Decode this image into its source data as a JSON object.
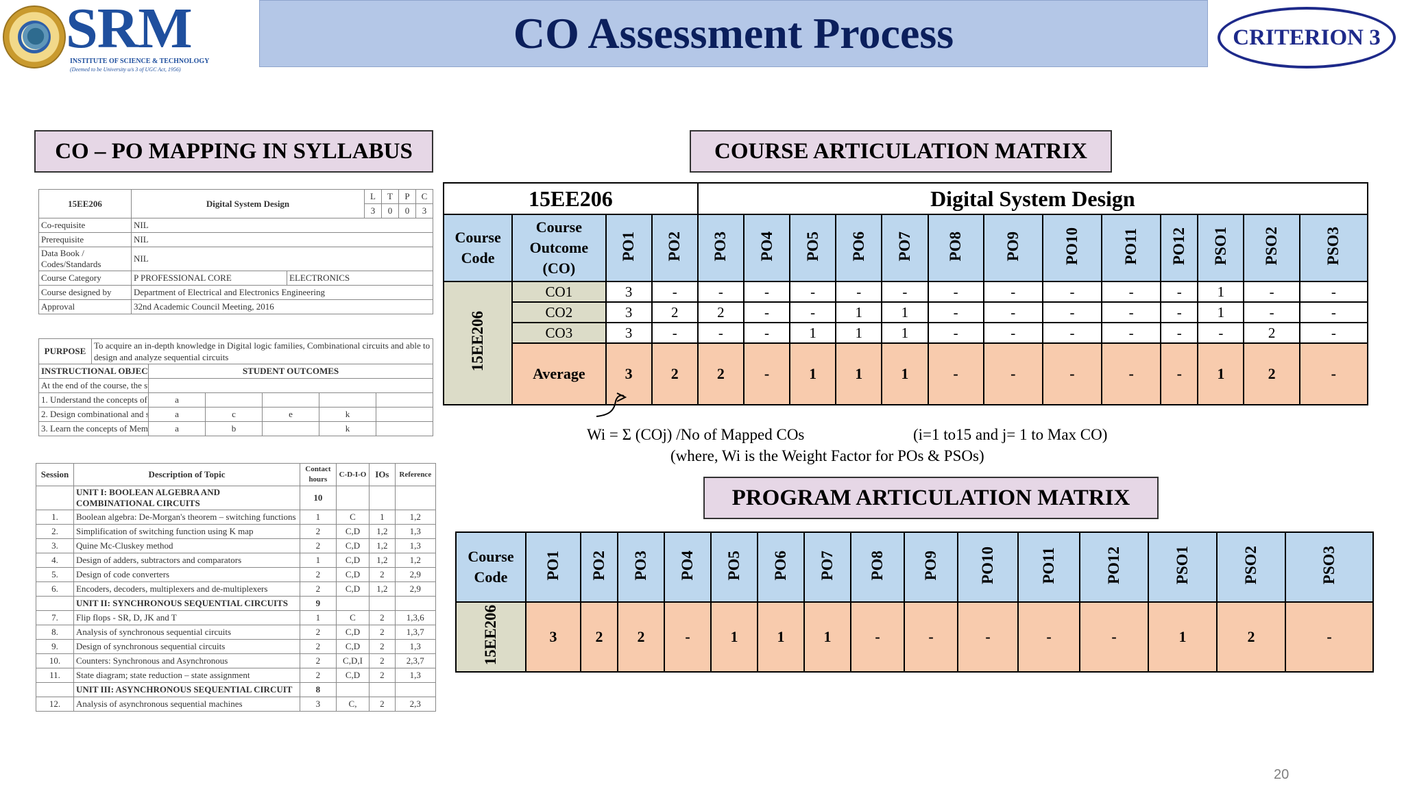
{
  "header": {
    "logo_text": "SRM",
    "logo_subtitle": "INSTITUTE OF SCIENCE & TECHNOLOGY",
    "logo_subtitle2": "(Deemed to be University u/s 3 of UGC Act, 1956)",
    "title": "CO Assessment Process",
    "criterion": "CRITERION 3"
  },
  "sections": {
    "syllabus": "CO – PO MAPPING IN SYLLABUS",
    "course_matrix": "COURSE ARTICULATION MATRIX",
    "program_matrix": "PROGRAM ARTICULATION MATRIX"
  },
  "syllabus": {
    "course_code": "15EE206",
    "course_name": "Digital System Design",
    "ltpc_labels": [
      "L",
      "T",
      "P",
      "C"
    ],
    "ltpc_values": [
      "3",
      "0",
      "0",
      "3"
    ],
    "info_rows": [
      {
        "label": "Co-requisite",
        "value": "NIL"
      },
      {
        "label": "Prerequisite",
        "value": "NIL"
      },
      {
        "label": "Data Book / Codes/Standards",
        "value": "NIL"
      },
      {
        "label": "Course Category",
        "value": "P    PROFESSIONAL CORE",
        "extra": "ELECTRONICS"
      },
      {
        "label": "Course designed by",
        "value": "Department of Electrical and Electronics Engineering"
      },
      {
        "label": "Approval",
        "value": "32nd Academic Council Meeting, 2016"
      }
    ],
    "purpose_label": "PURPOSE",
    "purpose_text": "To acquire an in-depth knowledge in Digital logic families, Combinational circuits and able to design and analyze sequential circuits",
    "objectives_header": "INSTRUCTIONAL OBJECTIVES",
    "outcomes_header": "STUDENT OUTCOMES",
    "objectives_intro": "At the end of the course, the student will be able to",
    "objectives": [
      {
        "no": "1.",
        "text": "Understand the concepts of digital logic circuits",
        "outcomes": [
          "a",
          "",
          "",
          ""
        ]
      },
      {
        "no": "2.",
        "text": "Design combinational and sequential logic circuits",
        "outcomes": [
          "a",
          "c",
          "e",
          "k"
        ]
      },
      {
        "no": "3.",
        "text": "Learn the concepts of Memory devices, VHDL",
        "outcomes": [
          "a",
          "b",
          "",
          "k"
        ]
      }
    ],
    "session_headers": [
      "Session",
      "Description of Topic",
      "Contact hours",
      "C-D-I-O",
      "IOs",
      "Reference"
    ],
    "session_rows": [
      {
        "unit": true,
        "topic": "UNIT I: BOOLEAN ALGEBRA AND COMBINATIONAL CIRCUITS",
        "hours": "10"
      },
      {
        "no": "1.",
        "topic": "Boolean algebra: De-Morgan's theorem – switching functions",
        "hours": "1",
        "cdio": "C",
        "ios": "1",
        "ref": "1,2"
      },
      {
        "no": "2.",
        "topic": "Simplification of switching function using K map",
        "hours": "2",
        "cdio": "C,D",
        "ios": "1,2",
        "ref": "1,3"
      },
      {
        "no": "3.",
        "topic": "Quine Mc-Cluskey method",
        "hours": "2",
        "cdio": "C,D",
        "ios": "1,2",
        "ref": "1,3"
      },
      {
        "no": "4.",
        "topic": "Design of adders, subtractors and comparators",
        "hours": "1",
        "cdio": "C,D",
        "ios": "1,2",
        "ref": "1,2"
      },
      {
        "no": "5.",
        "topic": "Design of code converters",
        "hours": "2",
        "cdio": "C,D",
        "ios": "2",
        "ref": "2,9"
      },
      {
        "no": "6.",
        "topic": "Encoders, decoders, multiplexers and de-multiplexers",
        "hours": "2",
        "cdio": "C,D",
        "ios": "1,2",
        "ref": "2,9"
      },
      {
        "unit": true,
        "topic": "UNIT II: SYNCHRONOUS SEQUENTIAL CIRCUITS",
        "hours": "9"
      },
      {
        "no": "7.",
        "topic": "Flip flops - SR, D, JK and T",
        "hours": "1",
        "cdio": "C",
        "ios": "2",
        "ref": "1,3,6"
      },
      {
        "no": "8.",
        "topic": "Analysis of synchronous sequential circuits",
        "hours": "2",
        "cdio": "C,D",
        "ios": "2",
        "ref": "1,3,7"
      },
      {
        "no": "9.",
        "topic": "Design of synchronous sequential circuits",
        "hours": "2",
        "cdio": "C,D",
        "ios": "2",
        "ref": "1,3"
      },
      {
        "no": "10.",
        "topic": "Counters: Synchronous and Asynchronous",
        "hours": "2",
        "cdio": "C,D,I",
        "ios": "2",
        "ref": "2,3,7"
      },
      {
        "no": "11.",
        "topic": "State diagram; state reduction – state assignment",
        "hours": "2",
        "cdio": "C,D",
        "ios": "2",
        "ref": "1,3"
      },
      {
        "unit": true,
        "topic": "UNIT III: ASYNCHRONOUS SEQUENTIAL CIRCUIT",
        "hours": "8"
      },
      {
        "no": "12.",
        "topic": "Analysis of asynchronous sequential machines",
        "hours": "3",
        "cdio": "C,",
        "ios": "2",
        "ref": "2,3"
      }
    ]
  },
  "course_matrix": {
    "course_code": "15EE206",
    "course_name": "Digital System Design",
    "code_header": "Course Code",
    "co_header": "Course Outcome (CO)",
    "po_headers": [
      "PO1",
      "PO2",
      "PO3",
      "PO4",
      "PO5",
      "PO6",
      "PO7",
      "PO8",
      "PO9",
      "PO10",
      "PO11",
      "PO12",
      "PSO1",
      "PSO2",
      "PSO3"
    ],
    "rows": [
      {
        "co": "CO1",
        "values": [
          "3",
          "-",
          "-",
          "-",
          "-",
          "-",
          "-",
          "-",
          "-",
          "-",
          "-",
          "-",
          "1",
          "-",
          "-"
        ]
      },
      {
        "co": "CO2",
        "values": [
          "3",
          "2",
          "2",
          "-",
          "-",
          "1",
          "1",
          "-",
          "-",
          "-",
          "-",
          "-",
          "1",
          "-",
          "-"
        ]
      },
      {
        "co": "CO3",
        "values": [
          "3",
          "-",
          "-",
          "-",
          "1",
          "1",
          "1",
          "-",
          "-",
          "-",
          "-",
          "-",
          "-",
          "2",
          "-"
        ]
      }
    ],
    "average_label": "Average",
    "average": [
      "3",
      "2",
      "2",
      "-",
      "1",
      "1",
      "1",
      "-",
      "-",
      "-",
      "-",
      "-",
      "1",
      "2",
      "-"
    ]
  },
  "formula": {
    "line1": "Wi = Σ (COj) /No of Mapped COs",
    "range": "(i=1 to15 and j= 1 to Max CO)",
    "line2": "(where, Wi is the Weight Factor for POs & PSOs)"
  },
  "program_matrix": {
    "code_header": "Course Code",
    "po_headers": [
      "PO1",
      "PO2",
      "PO3",
      "PO4",
      "PO5",
      "PO6",
      "PO7",
      "PO8",
      "PO9",
      "PO10",
      "PO11",
      "PO12",
      "PSO1",
      "PSO2",
      "PSO3"
    ],
    "course_code": "15EE206",
    "values": [
      "3",
      "2",
      "2",
      "-",
      "1",
      "1",
      "1",
      "-",
      "-",
      "-",
      "-",
      "-",
      "1",
      "2",
      "-"
    ]
  },
  "page_number": "20"
}
